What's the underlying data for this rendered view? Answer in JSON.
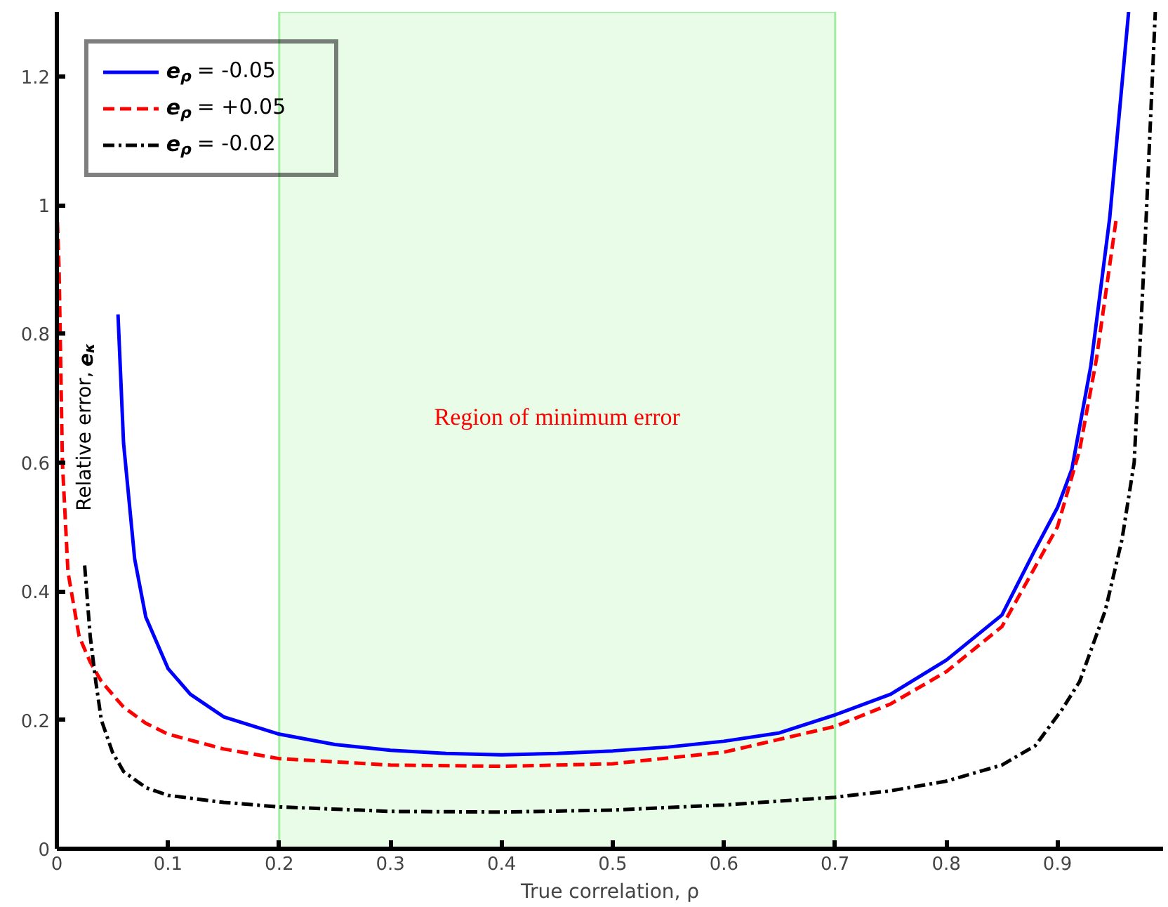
{
  "chart_data": {
    "type": "line",
    "xlabel": "True correlation, ρ",
    "ylabel": "Relative error, e$_{κ}$",
    "xlim": [
      0,
      0.995
    ],
    "ylim": [
      0,
      1.3
    ],
    "xticks": [
      0,
      0.1,
      0.2,
      0.3,
      0.4,
      0.5,
      0.6,
      0.7,
      0.8,
      0.9
    ],
    "yticks": [
      0,
      0.2,
      0.4,
      0.6,
      0.8,
      1,
      1.2
    ],
    "grid": false,
    "legend": "top left",
    "marker": "none",
    "bands": [
      {
        "axis": "x",
        "from": 0.2,
        "to": 0.7,
        "label": "Region of minimum error",
        "color": "#e8fce8"
      }
    ],
    "series": [
      {
        "name": "e$_{ρ}$ = -0.05",
        "color": "#0000ff",
        "line_style": "solid",
        "x": [
          0.055,
          0.06,
          0.07,
          0.08,
          0.1,
          0.12,
          0.15,
          0.2,
          0.25,
          0.3,
          0.35,
          0.4,
          0.45,
          0.5,
          0.55,
          0.6,
          0.65,
          0.7,
          0.75,
          0.8,
          0.85,
          0.88,
          0.9,
          0.913,
          0.93,
          0.947,
          0.964
        ],
        "values": [
          0.83,
          0.63,
          0.45,
          0.36,
          0.28,
          0.24,
          0.205,
          0.178,
          0.162,
          0.153,
          0.148,
          0.146,
          0.148,
          0.152,
          0.158,
          0.167,
          0.18,
          0.208,
          0.24,
          0.293,
          0.363,
          0.465,
          0.53,
          0.59,
          0.75,
          0.98,
          1.3
        ]
      },
      {
        "name": "e$_{ρ}$ = +0.05",
        "color": "#ff0000",
        "line_style": "dashed",
        "x": [
          0,
          0.002,
          0.005,
          0.01,
          0.02,
          0.03,
          0.04,
          0.06,
          0.08,
          0.1,
          0.15,
          0.2,
          0.3,
          0.4,
          0.5,
          0.6,
          0.7,
          0.75,
          0.8,
          0.85,
          0.9,
          0.92,
          0.935,
          0.953
        ],
        "values": [
          1.0,
          0.9,
          0.6,
          0.43,
          0.33,
          0.29,
          0.26,
          0.22,
          0.195,
          0.178,
          0.155,
          0.14,
          0.13,
          0.128,
          0.132,
          0.15,
          0.19,
          0.225,
          0.275,
          0.345,
          0.5,
          0.62,
          0.76,
          0.98
        ]
      },
      {
        "name": "e$_{ρ}$ = -0.02",
        "color": "#000000",
        "line_style": "dashdot",
        "x": [
          0.025,
          0.03,
          0.035,
          0.04,
          0.05,
          0.06,
          0.08,
          0.1,
          0.15,
          0.2,
          0.3,
          0.4,
          0.5,
          0.6,
          0.7,
          0.75,
          0.8,
          0.85,
          0.88,
          0.904,
          0.92,
          0.943,
          0.958,
          0.969,
          0.979,
          0.988
        ],
        "values": [
          0.44,
          0.33,
          0.26,
          0.2,
          0.15,
          0.12,
          0.095,
          0.083,
          0.072,
          0.065,
          0.058,
          0.057,
          0.06,
          0.068,
          0.08,
          0.09,
          0.105,
          0.13,
          0.16,
          0.216,
          0.26,
          0.37,
          0.48,
          0.6,
          0.95,
          1.3
        ]
      }
    ]
  }
}
